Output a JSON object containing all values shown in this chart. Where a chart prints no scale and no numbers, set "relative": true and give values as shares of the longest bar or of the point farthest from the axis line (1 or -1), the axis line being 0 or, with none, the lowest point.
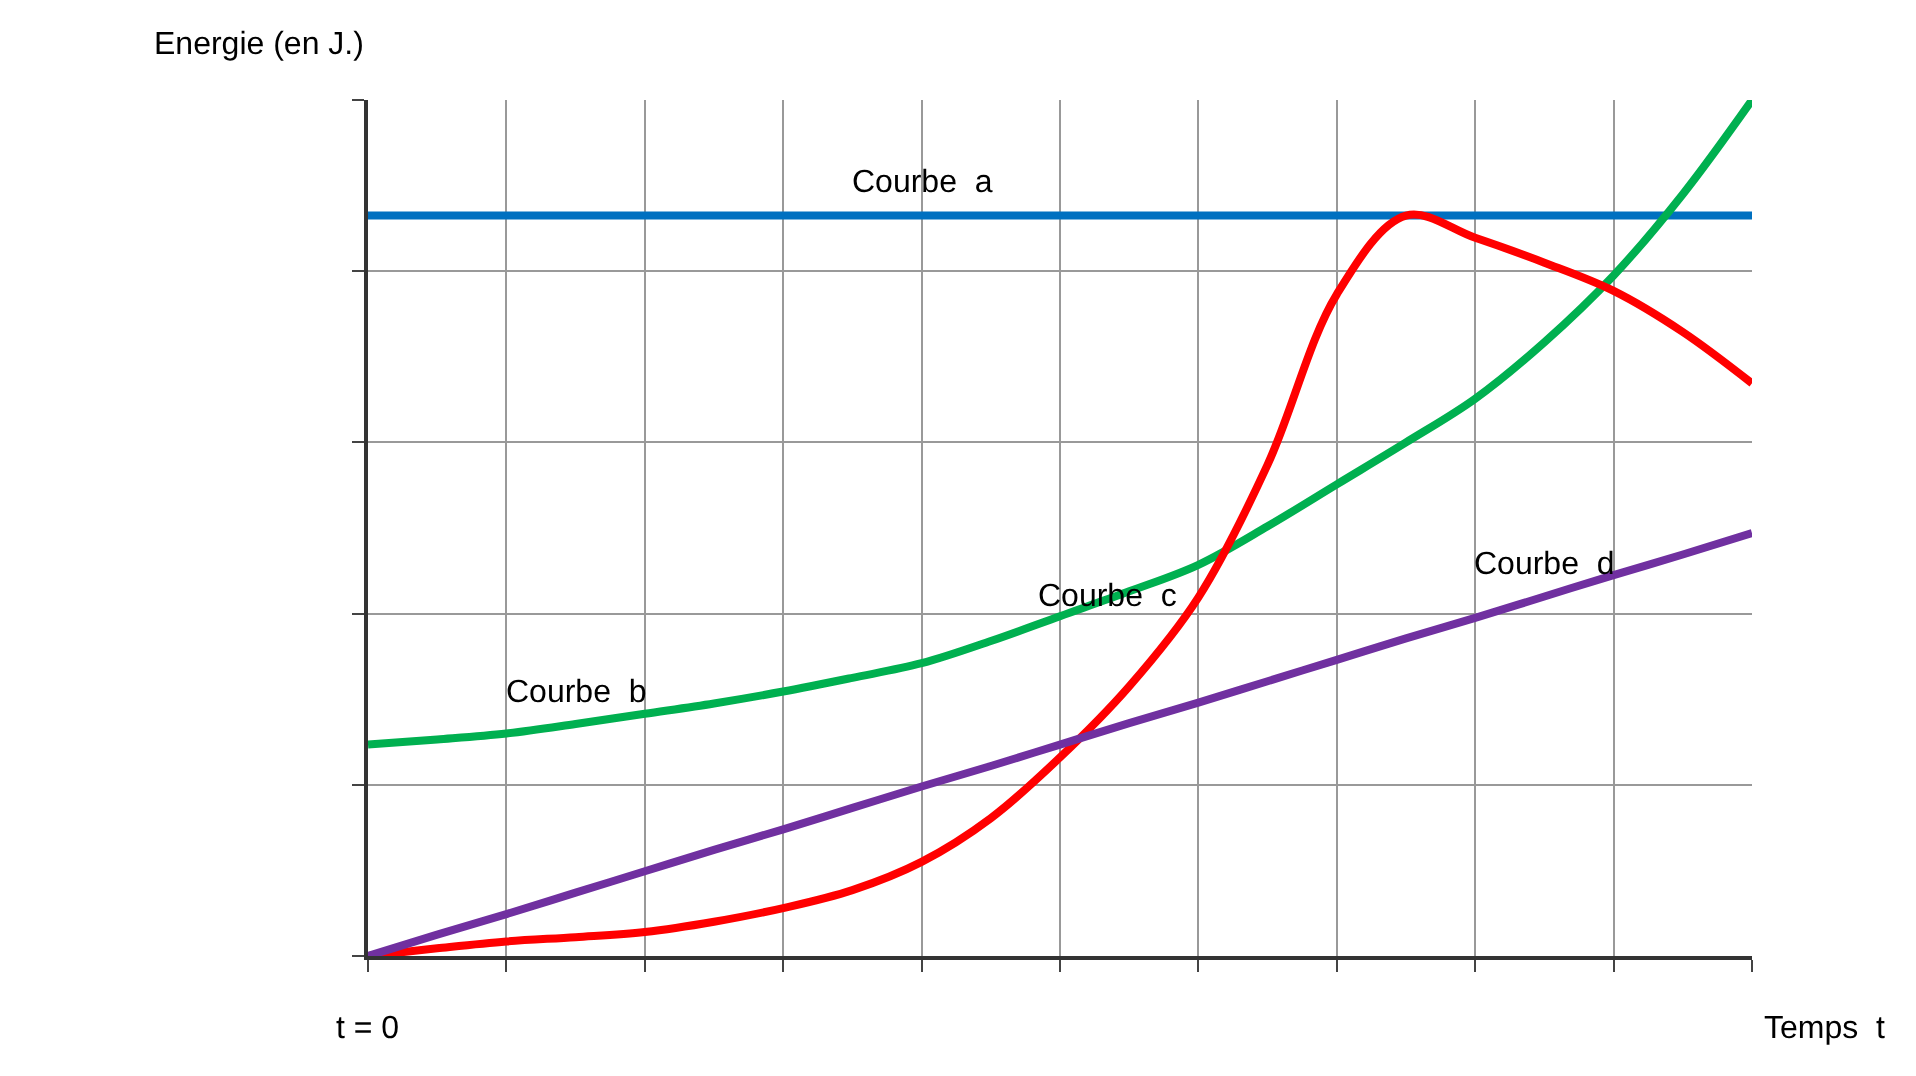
{
  "chart_data": {
    "type": "line",
    "relative": true,
    "xlabel": "Temps  t",
    "ylabel": "Energie (en J.)",
    "annotations": [
      "t = 0"
    ],
    "grid": true,
    "legend": false,
    "marker": "none",
    "line_style": "solid",
    "categories": [
      null,
      null,
      null,
      null,
      null,
      null,
      null,
      null,
      null,
      null,
      null,
      null,
      null,
      null,
      null,
      null,
      null,
      null,
      null,
      null,
      null
    ],
    "series": [
      {
        "name": "Courbe  a",
        "color": "#0070c0",
        "values": [
          0.865,
          0.865,
          0.865,
          0.865,
          0.865,
          0.865,
          0.865,
          0.865,
          0.865,
          0.865,
          0.865,
          0.865,
          0.865,
          0.865,
          0.865,
          0.865,
          0.865,
          0.865,
          0.865,
          0.865,
          0.865
        ]
      },
      {
        "name": "Courbe  b",
        "color": "#00b050",
        "values": [
          0.247,
          0.253,
          0.26,
          0.271,
          0.283,
          0.295,
          0.309,
          0.325,
          0.342,
          0.368,
          0.397,
          0.426,
          0.457,
          0.502,
          0.551,
          0.6,
          0.651,
          0.717,
          0.795,
          0.89,
          1
        ]
      },
      {
        "name": "Courbe  c",
        "color": "#ff0000",
        "values": [
          0,
          0.009,
          0.017,
          0.022,
          0.028,
          0.04,
          0.056,
          0.077,
          0.11,
          0.161,
          0.232,
          0.315,
          0.419,
          0.574,
          0.773,
          0.865,
          0.839,
          0.81,
          0.777,
          0.729,
          0.669
        ]
      },
      {
        "name": "Courbe  d",
        "color": "#7030a0",
        "values": [
          0,
          0.025,
          0.049,
          0.074,
          0.099,
          0.124,
          0.148,
          0.173,
          0.198,
          0.222,
          0.247,
          0.272,
          0.296,
          0.321,
          0.346,
          0.371,
          0.395,
          0.42,
          0.445,
          0.469,
          0.494
        ]
      }
    ]
  }
}
